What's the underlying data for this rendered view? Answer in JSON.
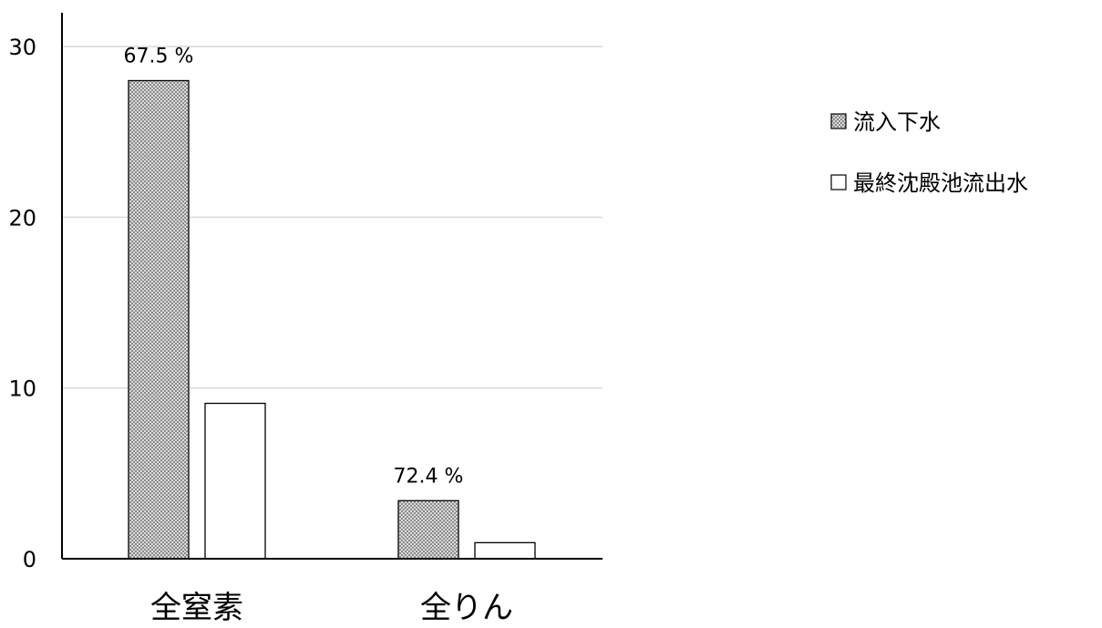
{
  "chart_data": {
    "type": "bar",
    "categories": [
      "全窒素",
      "全りん"
    ],
    "series": [
      {
        "name": "流入下水",
        "values": [
          28.0,
          3.4
        ],
        "pattern": "dotted",
        "data_labels": [
          "67.5 %",
          "72.4 %"
        ]
      },
      {
        "name": "最終沈殿池流出水",
        "values": [
          9.1,
          0.94
        ],
        "pattern": "white",
        "data_labels": [
          "",
          ""
        ]
      }
    ],
    "title": "",
    "xlabel": "",
    "ylabel": "",
    "ylim": [
      0,
      30
    ],
    "yticks": [
      0,
      10,
      20,
      30
    ],
    "grid": true,
    "legend_position": "right",
    "colors": {
      "bar_stroke": "#000000",
      "dot_fill": "#555555",
      "dot_background": "#d9d9d9",
      "grid": "#d0d0d0",
      "axis": "#000000"
    }
  }
}
